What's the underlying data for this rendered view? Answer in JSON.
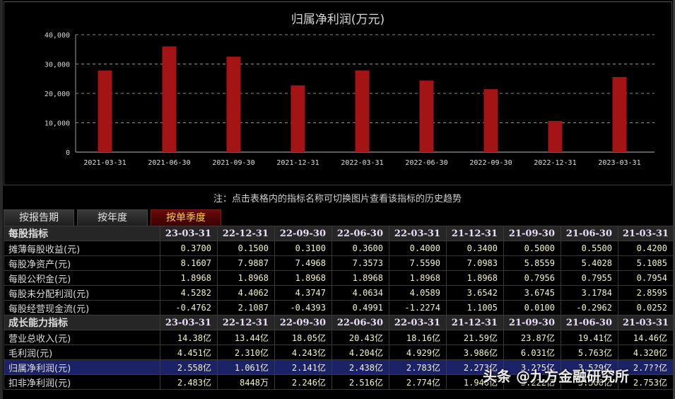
{
  "chart": {
    "title": "归属净利润(万元)"
  },
  "chart_data": {
    "type": "bar",
    "title": "归属净利润(万元)",
    "xlabel": "",
    "ylabel": "",
    "categories": [
      "2021-03-31",
      "2021-06-30",
      "2021-09-30",
      "2021-12-31",
      "2022-03-31",
      "2022-06-30",
      "2022-09-30",
      "2022-12-31",
      "2023-03-31"
    ],
    "values": [
      27800,
      36000,
      32500,
      22730,
      27830,
      24380,
      21410,
      10610,
      25580
    ],
    "ylim": [
      0,
      40000
    ],
    "yticks": [
      "0",
      "10,000",
      "20,000",
      "30,000",
      "40,000"
    ],
    "grid": true,
    "legend": null,
    "bar_color": "#a51414"
  },
  "note": "注：点击表格内的指标名称可切换图片查看该指标的历史趋势",
  "tabs": [
    {
      "label": "按报告期",
      "active": false
    },
    {
      "label": "按年度",
      "active": false
    },
    {
      "label": "按单季度",
      "active": true
    }
  ],
  "table": {
    "sections": [
      {
        "title": "每股指标",
        "dates": [
          "23-03-31",
          "22-12-31",
          "22-09-30",
          "22-06-30",
          "22-03-31",
          "21-12-31",
          "21-09-30",
          "21-06-30",
          "21-03-31"
        ],
        "rows": [
          {
            "label": "摊薄每股收益(元)",
            "values": [
              "0.3700",
              "0.1500",
              "0.3100",
              "0.3600",
              "0.4000",
              "0.3400",
              "0.5000",
              "0.5500",
              "0.4200"
            ]
          },
          {
            "label": "每股净资产(元)",
            "values": [
              "8.1607",
              "7.9887",
              "7.4968",
              "7.3573",
              "7.5590",
              "7.0983",
              "5.8559",
              "5.4028",
              "5.1085"
            ]
          },
          {
            "label": "每股公积金(元)",
            "values": [
              "1.8968",
              "1.8968",
              "1.8968",
              "1.8968",
              "1.8968",
              "1.8968",
              "0.7956",
              "0.7955",
              "0.7954"
            ]
          },
          {
            "label": "每股未分配利润(元)",
            "values": [
              "4.5282",
              "4.4062",
              "4.3747",
              "4.0634",
              "4.0589",
              "3.6542",
              "3.6745",
              "3.1784",
              "2.8595"
            ]
          },
          {
            "label": "每股经营现金流(元)",
            "values": [
              "-0.4762",
              "2.1087",
              "-0.4393",
              "0.4991",
              "-1.2274",
              "1.1005",
              "0.0100",
              "-0.2962",
              "0.0252"
            ]
          }
        ]
      },
      {
        "title": "成长能力指标",
        "dates": [
          "23-03-31",
          "22-12-31",
          "22-09-30",
          "22-06-30",
          "22-03-31",
          "21-12-31",
          "21-09-30",
          "21-06-30",
          "21-03-31"
        ],
        "rows": [
          {
            "label": "营业总收入(元)",
            "values": [
              "14.38亿",
              "13.44亿",
              "18.05亿",
              "20.43亿",
              "18.16亿",
              "21.59亿",
              "23.87亿",
              "19.41亿",
              "14.46亿"
            ]
          },
          {
            "label": "毛利润(元)",
            "values": [
              "4.451亿",
              "2.310亿",
              "4.243亿",
              "4.204亿",
              "4.929亿",
              "3.986亿",
              "6.031亿",
              "5.763亿",
              "4.320亿"
            ]
          },
          {
            "label": "归属净利润(元)",
            "values": [
              "2.558亿",
              "1.061亿",
              "2.141亿",
              "2.438亿",
              "2.783亿",
              "2.273亿",
              "3.2?5亿",
              "3.5?9亿",
              "2.7??亿"
            ],
            "highlighted": true
          },
          {
            "label": "扣非净利润(元)",
            "values": [
              "2.483亿",
              "8448万",
              "2.246亿",
              "2.516亿",
              "2.774亿",
              "1.946亿",
              "3.222亿",
              "3.568亿",
              "2.753亿"
            ]
          }
        ]
      }
    ]
  },
  "watermark": "头条 @九方金融研究所"
}
